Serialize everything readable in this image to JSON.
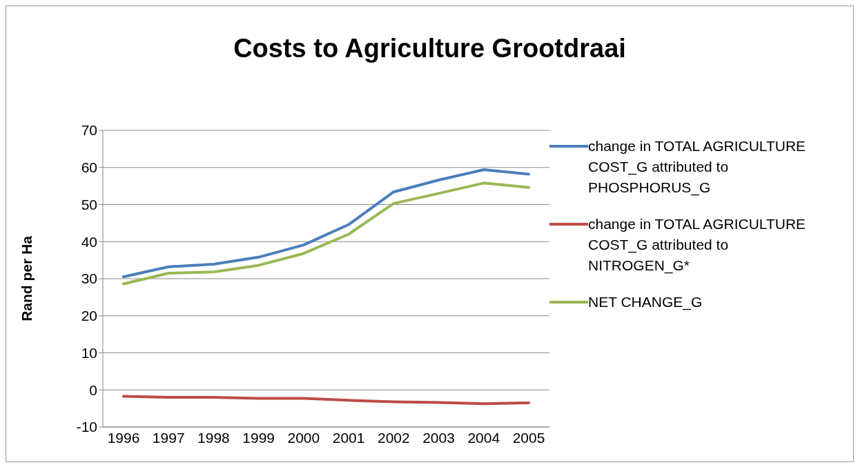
{
  "chart_data": {
    "type": "line",
    "title": "Costs to Agriculture Grootdraai",
    "ylabel": "Rand per Ha",
    "categories": [
      "1996",
      "1997",
      "1998",
      "1999",
      "2000",
      "2001",
      "2002",
      "2003",
      "2004",
      "2005"
    ],
    "series": [
      {
        "name": "change in TOTAL AGRICULTURE COST_G attributed to PHOSPHORUS_G",
        "color": "#4a7ebb",
        "values": [
          30.5,
          33.2,
          33.9,
          35.8,
          39.1,
          44.6,
          53.4,
          56.6,
          59.4,
          58.2
        ]
      },
      {
        "name": "change in TOTAL AGRICULTURE COST_G attributed to NITROGEN_G*",
        "color": "#be4b48",
        "values": [
          -1.7,
          -2.0,
          -2.0,
          -2.3,
          -2.3,
          -2.8,
          -3.2,
          -3.4,
          -3.7,
          -3.5
        ]
      },
      {
        "name": "NET CHANGE_G",
        "color": "#98b954",
        "values": [
          28.6,
          31.5,
          31.8,
          33.6,
          36.8,
          42.0,
          50.3,
          53.0,
          55.8,
          54.6
        ]
      }
    ],
    "ylim": [
      -10,
      70
    ],
    "yticks": [
      -10,
      0,
      10,
      20,
      30,
      40,
      50,
      60,
      70
    ],
    "grid": "y",
    "legend": "right",
    "marker": "none",
    "line_style": "solid"
  }
}
